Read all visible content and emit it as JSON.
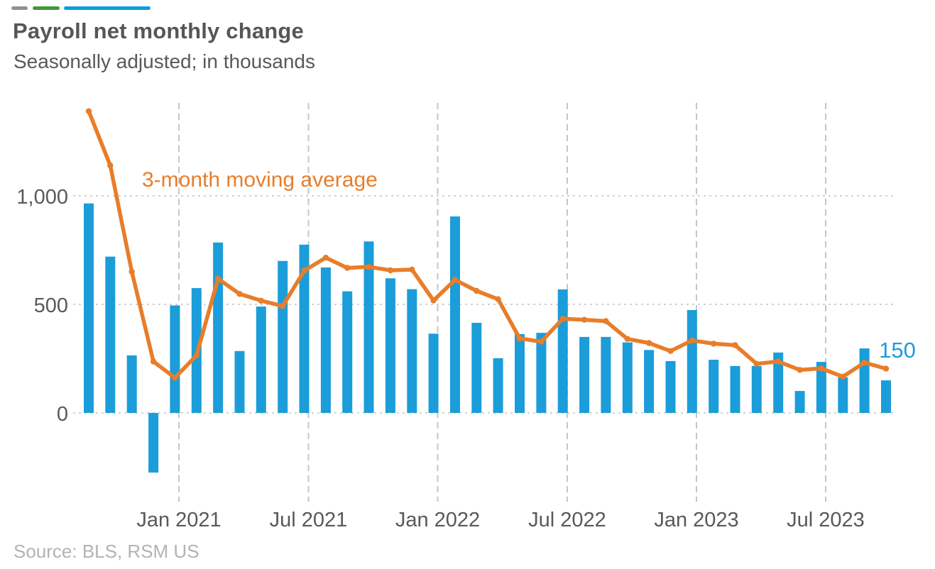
{
  "header": {
    "title": "Payroll net monthly change",
    "subtitle": "Seasonally adjusted; in thousands",
    "accent_colors": {
      "gray": "#8f9194",
      "green": "#3f9c35",
      "blue": "#0f9edb"
    }
  },
  "source": {
    "label": "Source: BLS, RSM US"
  },
  "chart_data": {
    "type": "bar",
    "title": "Payroll net monthly change",
    "subtitle": "Seasonally adjusted; in thousands",
    "categories": [
      "Sep 2020",
      "Oct 2020",
      "Nov 2020",
      "Dec 2020",
      "Jan 2021",
      "Feb 2021",
      "Mar 2021",
      "Apr 2021",
      "May 2021",
      "Jun 2021",
      "Jul 2021",
      "Aug 2021",
      "Sep 2021",
      "Oct 2021",
      "Nov 2021",
      "Dec 2021",
      "Jan 2022",
      "Feb 2022",
      "Mar 2022",
      "Apr 2022",
      "May 2022",
      "Jun 2022",
      "Jul 2022",
      "Aug 2022",
      "Sep 2022",
      "Oct 2022",
      "Nov 2022",
      "Dec 2022",
      "Jan 2023",
      "Feb 2023",
      "Mar 2023",
      "Apr 2023",
      "May 2023",
      "Jun 2023",
      "Jul 2023",
      "Aug 2023",
      "Sep 2023",
      "Oct 2023"
    ],
    "series": [
      {
        "name": "Payroll net monthly change",
        "type": "bar",
        "color": "#1b9dd9",
        "values": [
          965,
          720,
          265,
          -275,
          495,
          575,
          785,
          285,
          490,
          700,
          775,
          670,
          560,
          790,
          620,
          570,
          365,
          905,
          415,
          252,
          363,
          369,
          569,
          350,
          350,
          325,
          290,
          239,
          474,
          245,
          216,
          216,
          278,
          101,
          235,
          164,
          297,
          150
        ]
      },
      {
        "name": "3-month moving average",
        "type": "line",
        "color": "#e87d2a",
        "values": [
          1390,
          1140,
          650,
          237,
          162,
          265,
          618,
          548,
          517,
          492,
          655,
          715,
          668,
          673,
          657,
          660,
          518,
          613,
          562,
          524,
          343,
          328,
          434,
          429,
          423,
          341,
          322,
          285,
          334,
          319,
          312,
          226,
          237,
          198,
          205,
          167,
          232,
          204
        ]
      }
    ],
    "x_axis": {
      "ticks": [
        {
          "index": 4,
          "label": "Jan 2021"
        },
        {
          "index": 10,
          "label": "Jul 2021"
        },
        {
          "index": 16,
          "label": "Jan 2022"
        },
        {
          "index": 22,
          "label": "Jul 2022"
        },
        {
          "index": 28,
          "label": "Jan 2023"
        },
        {
          "index": 34,
          "label": "Jul 2023"
        }
      ]
    },
    "y_axis": {
      "ticks": [
        {
          "value": 0,
          "label": "0"
        },
        {
          "value": 500,
          "label": "500"
        },
        {
          "value": 1000,
          "label": "1,000"
        }
      ],
      "ylim": [
        -400,
        1480
      ]
    },
    "annotations": [
      {
        "text": "3-month moving average",
        "color": "#e87d2a"
      },
      {
        "text": "150",
        "color": "#1b9dd9"
      }
    ],
    "layout_hints": {
      "legend": "none",
      "h_grid": "dotted",
      "v_grid": "dashed at Jan/Jul"
    }
  }
}
